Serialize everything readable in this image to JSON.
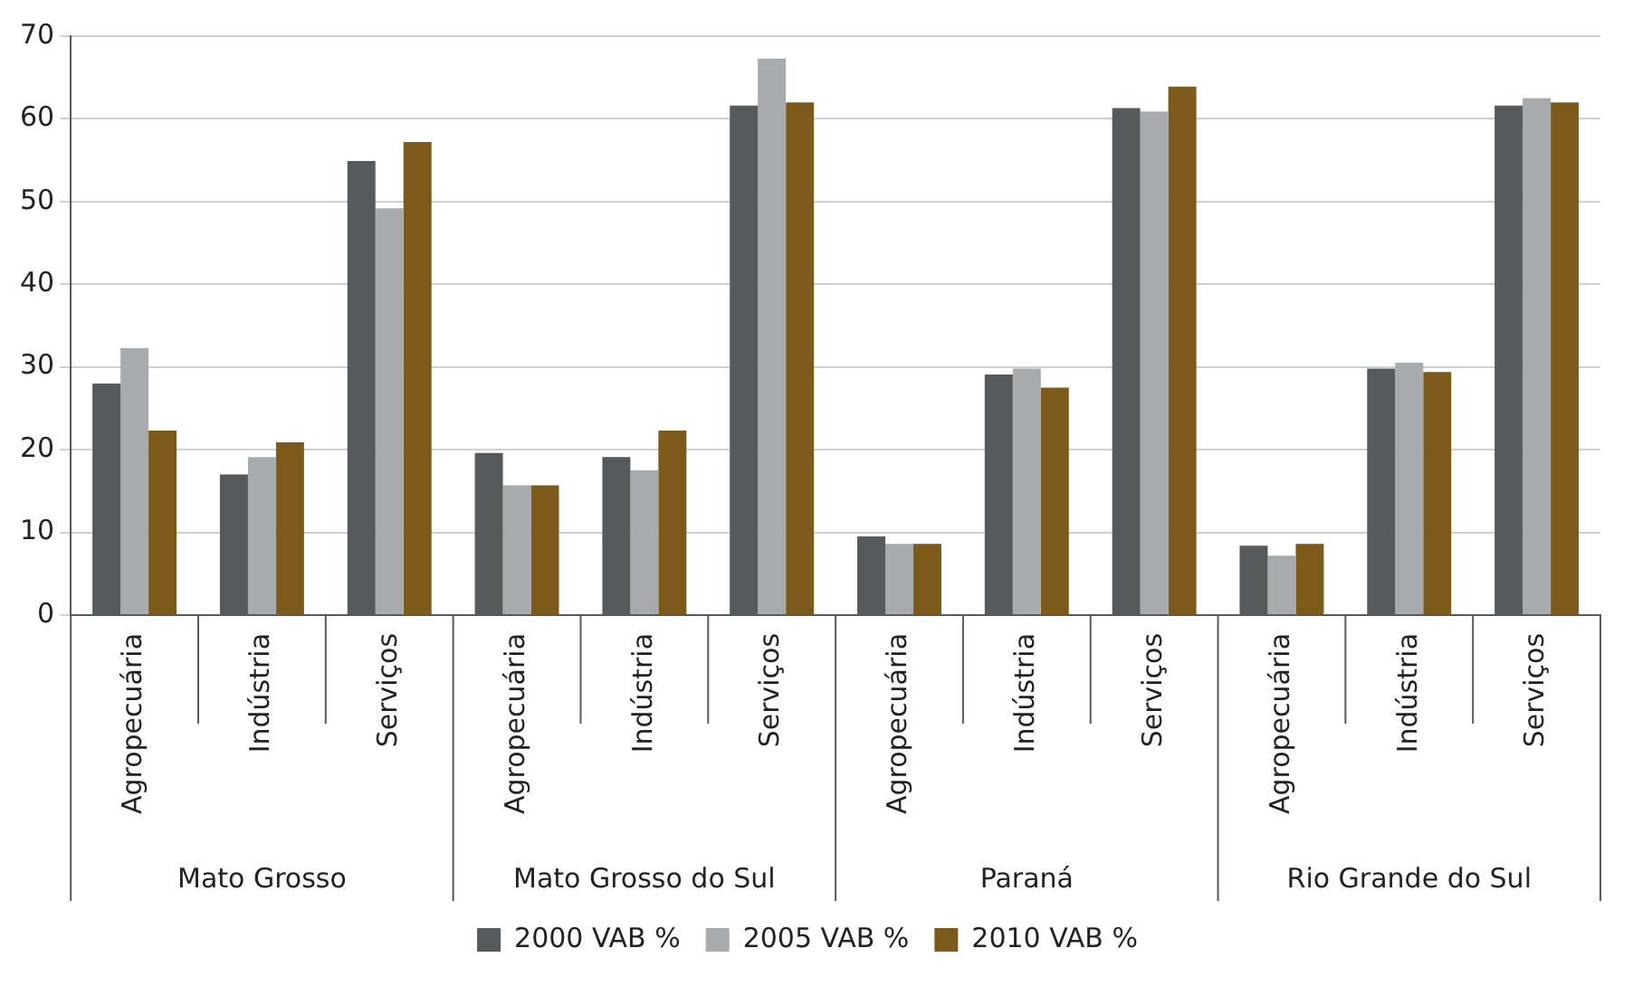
{
  "chart_data": {
    "type": "bar",
    "categories": [
      "Agropecuária",
      "Indústria",
      "Serviços",
      "Agropecuária",
      "Indústria",
      "Serviços",
      "Agropecuária",
      "Indústria",
      "Serviços",
      "Agropecuária",
      "Indústria",
      "Serviços"
    ],
    "series": [
      {
        "name": "2000 VAB %",
        "color": "#58595b",
        "values": [
          28.0,
          17.0,
          54.9,
          19.6,
          19.1,
          61.6,
          9.5,
          29.1,
          61.3,
          8.4,
          29.8,
          61.6
        ]
      },
      {
        "name": "2005 VAB %",
        "color": "#a9aaad",
        "values": [
          32.3,
          19.1,
          49.2,
          15.7,
          17.5,
          67.3,
          8.6,
          29.8,
          60.9,
          7.2,
          30.5,
          62.5
        ]
      },
      {
        "name": "2010 VAB %",
        "color": "#7c5a1a",
        "values": [
          22.3,
          20.9,
          57.2,
          15.7,
          22.3,
          62.0,
          8.6,
          27.5,
          63.9,
          8.6,
          29.4,
          62.0
        ]
      }
    ],
    "annotations": [
      "Mato Grosso",
      "Mato Grosso do Sul",
      "Paraná",
      "Rio Grande do Sul"
    ],
    "ylim": [
      0,
      70
    ],
    "yticks": [
      0,
      10,
      20,
      30,
      40,
      50,
      60,
      70
    ],
    "grid": "y",
    "legend": "bottom"
  }
}
